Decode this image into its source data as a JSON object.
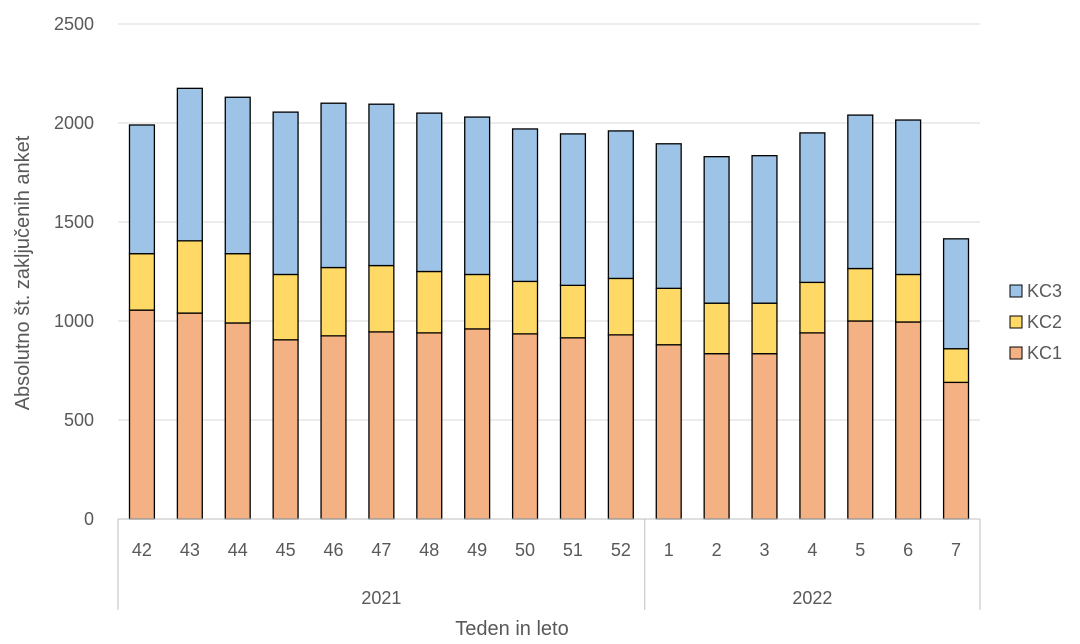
{
  "chart_data": {
    "type": "bar",
    "stacked": true,
    "xlabel": "Teden in leto",
    "ylabel": "Absolutno št. zaključenih anket",
    "ylim": [
      0,
      2500
    ],
    "yticks": [
      0,
      500,
      1000,
      1500,
      2000,
      2500
    ],
    "grid": true,
    "legend_position": "right",
    "categories": [
      "42",
      "43",
      "44",
      "45",
      "46",
      "47",
      "48",
      "49",
      "50",
      "51",
      "52",
      "1",
      "2",
      "3",
      "4",
      "5",
      "6",
      "7"
    ],
    "groups": [
      {
        "label": "2021",
        "count": 11
      },
      {
        "label": "2022",
        "count": 7
      }
    ],
    "series": [
      {
        "name": "KC1",
        "color": "#F4B183",
        "values": [
          1055,
          1040,
          990,
          905,
          925,
          945,
          940,
          960,
          935,
          915,
          930,
          880,
          835,
          835,
          940,
          1000,
          995,
          690
        ]
      },
      {
        "name": "KC2",
        "color": "#FFD966",
        "values": [
          285,
          365,
          350,
          330,
          345,
          335,
          310,
          275,
          265,
          265,
          285,
          285,
          255,
          255,
          255,
          265,
          240,
          170
        ]
      },
      {
        "name": "KC3",
        "color": "#9DC3E6",
        "values": [
          650,
          770,
          790,
          820,
          830,
          815,
          800,
          795,
          770,
          765,
          745,
          730,
          740,
          745,
          755,
          775,
          780,
          555
        ]
      }
    ]
  }
}
